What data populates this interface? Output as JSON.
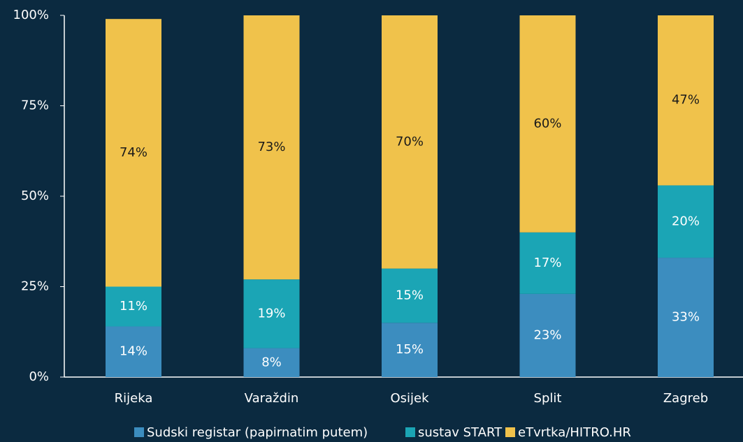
{
  "chart_data": {
    "type": "stacked_bar",
    "categories": [
      "Rijeka",
      "Varaždin",
      "Osijek",
      "Split",
      "Zagreb"
    ],
    "series": [
      {
        "name": "Sudski registar (papirnatim putem)",
        "color": "#3c8dbf",
        "values": [
          14,
          8,
          15,
          23,
          33
        ],
        "value_labels": [
          "14%",
          "8%",
          "15%",
          "23%",
          "33%"
        ]
      },
      {
        "name": "sustav START",
        "color": "#1ba5b5",
        "values": [
          11,
          19,
          15,
          17,
          20
        ],
        "value_labels": [
          "11%",
          "19%",
          "15%",
          "17%",
          "20%"
        ]
      },
      {
        "name": "eTvrtka/HITRO.HR",
        "color": "#f0c24b",
        "values": [
          74,
          73,
          70,
          60,
          47
        ],
        "value_labels": [
          "74%",
          "73%",
          "70%",
          "60%",
          "47%"
        ]
      }
    ],
    "ylim": [
      0,
      100
    ],
    "yticks": [
      {
        "value": 0,
        "label": "0%"
      },
      {
        "value": 25,
        "label": "25%"
      },
      {
        "value": 50,
        "label": "50%"
      },
      {
        "value": 75,
        "label": "75%"
      },
      {
        "value": 100,
        "label": "100%"
      }
    ],
    "legend": "bottom"
  }
}
